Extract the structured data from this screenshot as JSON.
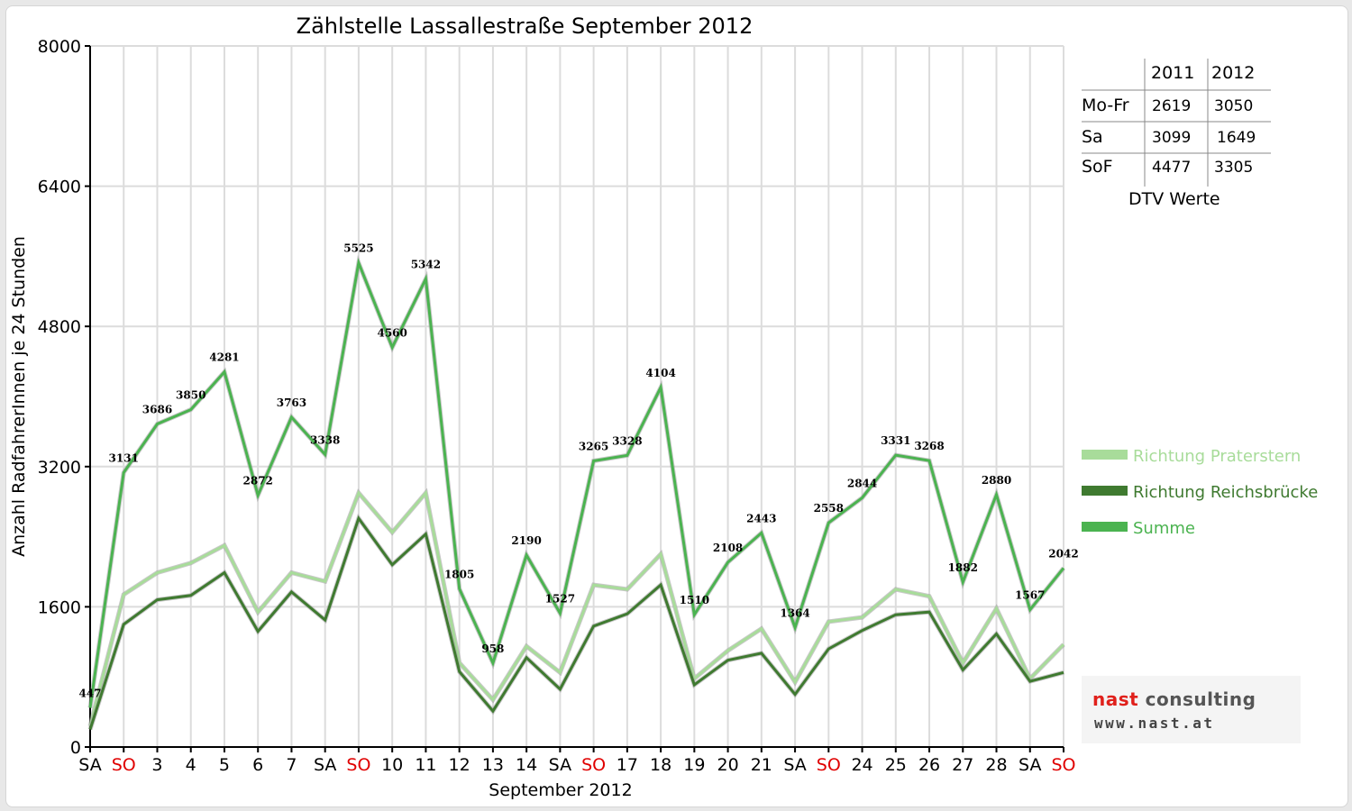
{
  "chart_data": {
    "type": "line",
    "title": "Zählstelle Lassallestraße September 2012",
    "xlabel": "September 2012",
    "ylabel": "Anzahl RadfahrerInnen je 24 Stunden",
    "ylim": [
      0,
      8000
    ],
    "yticks": [
      0,
      1600,
      3200,
      4800,
      6400,
      8000
    ],
    "grid": true,
    "legend_position": "right",
    "categories": [
      "SA",
      "SO",
      "3",
      "4",
      "5",
      "6",
      "7",
      "SA",
      "SO",
      "10",
      "11",
      "12",
      "13",
      "14",
      "SA",
      "SO",
      "17",
      "18",
      "19",
      "20",
      "21",
      "SA",
      "SO",
      "24",
      "25",
      "26",
      "27",
      "28",
      "SA",
      "SO"
    ],
    "weekend_labels": [
      "SO"
    ],
    "weekend_color": "#e00000",
    "series": [
      {
        "name": "Richtung Praterstern",
        "color": "#a8dc9a",
        "values": [
          240,
          1740,
          1990,
          2100,
          2300,
          1540,
          1990,
          1890,
          2900,
          2450,
          2900,
          960,
          540,
          1150,
          850,
          1850,
          1800,
          2200,
          780,
          1100,
          1350,
          740,
          1430,
          1480,
          1800,
          1720,
          960,
          1580,
          780,
          1170
        ],
        "labels": null
      },
      {
        "name": "Richtung Reichsbrücke",
        "color": "#3f7a30",
        "values": [
          200,
          1400,
          1680,
          1730,
          1990,
          1320,
          1770,
          1450,
          2610,
          2080,
          2430,
          860,
          410,
          1020,
          660,
          1380,
          1520,
          1850,
          710,
          990,
          1070,
          600,
          1120,
          1330,
          1510,
          1540,
          880,
          1290,
          750,
          850
        ],
        "labels": null
      },
      {
        "name": "Summe",
        "color": "#4bb350",
        "values": [
          447,
          3131,
          3686,
          3850,
          4281,
          2872,
          3763,
          3338,
          5525,
          4560,
          5342,
          1805,
          958,
          2190,
          1527,
          3265,
          3328,
          4104,
          1510,
          2108,
          2443,
          1364,
          2558,
          2844,
          3331,
          3268,
          1882,
          2880,
          1567,
          2042
        ],
        "labels": [
          "447",
          "3131",
          "3686",
          "3850",
          "4281",
          "2872",
          "3763",
          "3338",
          "5525",
          "4560",
          "5342",
          "1805",
          "958",
          "2190",
          "1527",
          "3265",
          "3328",
          "4104",
          "1510",
          "2108",
          "2443",
          "1364",
          "2558",
          "2844",
          "3331",
          "3268",
          "1882",
          "2880",
          "1567",
          "2042"
        ]
      }
    ]
  },
  "dtv_table": {
    "caption": "DTV Werte",
    "header": [
      "",
      "2011",
      "2012"
    ],
    "rows": [
      {
        "label": "Mo-Fr",
        "v2011": "2619",
        "v2012": "3050"
      },
      {
        "label": "Sa",
        "v2011": "3099",
        "v2012": "1649"
      },
      {
        "label": "SoF",
        "v2011": "4477",
        "v2012": "3305"
      }
    ]
  },
  "logo": {
    "name_part1": "nast",
    "name_part2": " consulting",
    "url": "www.nast.at"
  }
}
